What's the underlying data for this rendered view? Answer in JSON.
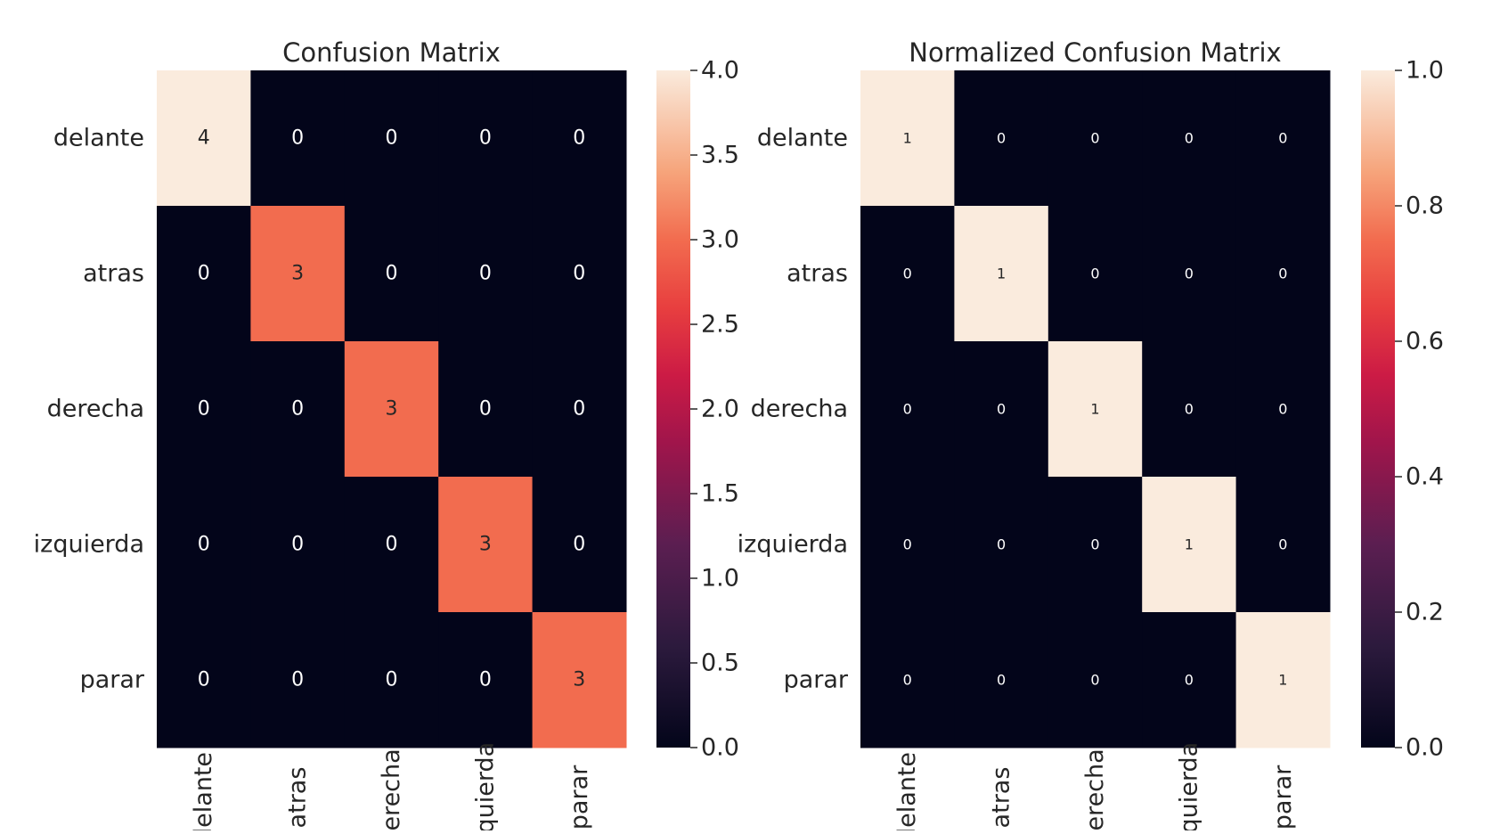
{
  "chart_data": [
    {
      "type": "heatmap",
      "title": "Confusion Matrix",
      "xlabel": "",
      "ylabel": "",
      "row_labels": [
        "delante",
        "atras",
        "derecha",
        "izquierda",
        "parar"
      ],
      "col_labels": [
        "delante",
        "atras",
        "derecha",
        "izquierda",
        "parar"
      ],
      "values": [
        [
          4,
          0,
          0,
          0,
          0
        ],
        [
          0,
          3,
          0,
          0,
          0
        ],
        [
          0,
          0,
          3,
          0,
          0
        ],
        [
          0,
          0,
          0,
          3,
          0
        ],
        [
          0,
          0,
          0,
          0,
          3
        ]
      ],
      "annotations": [
        [
          "4",
          "0",
          "0",
          "0",
          "0"
        ],
        [
          "0",
          "3",
          "0",
          "0",
          "0"
        ],
        [
          "0",
          "0",
          "3",
          "0",
          "0"
        ],
        [
          "0",
          "0",
          "0",
          "3",
          "0"
        ],
        [
          "0",
          "0",
          "0",
          "0",
          "3"
        ]
      ],
      "colorbar": {
        "min": 0.0,
        "max": 4.0,
        "ticks": [
          0.0,
          0.5,
          1.0,
          1.5,
          2.0,
          2.5,
          3.0,
          3.5,
          4.0
        ],
        "tick_labels": [
          "0.0",
          "0.5",
          "1.0",
          "1.5",
          "2.0",
          "2.5",
          "3.0",
          "3.5",
          "4.0"
        ]
      },
      "colormap": "rocket",
      "grid": false
    },
    {
      "type": "heatmap",
      "title": "Normalized Confusion Matrix",
      "xlabel": "",
      "ylabel": "",
      "row_labels": [
        "delante",
        "atras",
        "derecha",
        "izquierda",
        "parar"
      ],
      "col_labels": [
        "delante",
        "atras",
        "derecha",
        "izquierda",
        "parar"
      ],
      "values": [
        [
          1,
          0,
          0,
          0,
          0
        ],
        [
          0,
          1,
          0,
          0,
          0
        ],
        [
          0,
          0,
          1,
          0,
          0
        ],
        [
          0,
          0,
          0,
          1,
          0
        ],
        [
          0,
          0,
          0,
          0,
          1
        ]
      ],
      "annotations": [
        [
          "1",
          "0",
          "0",
          "0",
          "0"
        ],
        [
          "0",
          "1",
          "0",
          "0",
          "0"
        ],
        [
          "0",
          "0",
          "1",
          "0",
          "0"
        ],
        [
          "0",
          "0",
          "0",
          "1",
          "0"
        ],
        [
          "0",
          "0",
          "0",
          "0",
          "1"
        ]
      ],
      "colorbar": {
        "min": 0.0,
        "max": 1.0,
        "ticks": [
          0.0,
          0.2,
          0.4,
          0.6,
          0.8,
          1.0
        ],
        "tick_labels": [
          "0.0",
          "0.2",
          "0.4",
          "0.6",
          "0.8",
          "1.0"
        ]
      },
      "colormap": "rocket",
      "grid": false
    }
  ]
}
